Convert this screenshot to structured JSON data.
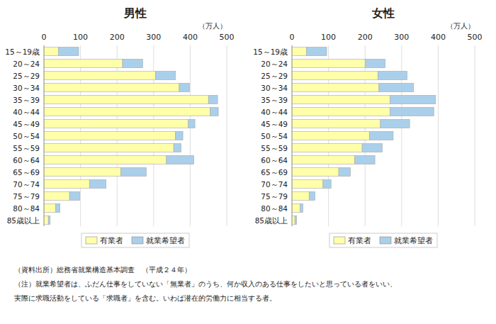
{
  "chart_data": [
    {
      "type": "bar",
      "orientation": "horizontal",
      "stacked": true,
      "title": "男性",
      "x_label": "（万人）",
      "categories": [
        "15～19歳",
        "20～24",
        "25～29",
        "30～34",
        "35～39",
        "40～44",
        "45～49",
        "50～54",
        "55～59",
        "60～64",
        "65～69",
        "70～74",
        "75～79",
        "80～84",
        "85歳以上"
      ],
      "series": [
        {
          "name": "有業者",
          "color": "#ffffaa",
          "values": [
            40,
            215,
            305,
            370,
            450,
            455,
            395,
            360,
            355,
            335,
            210,
            125,
            70,
            32,
            12
          ]
        },
        {
          "name": "就業希望者",
          "color": "#aacfea",
          "values": [
            55,
            55,
            55,
            28,
            25,
            22,
            18,
            20,
            20,
            75,
            70,
            45,
            28,
            12,
            5
          ]
        }
      ],
      "xlim": [
        0,
        500
      ],
      "xticks": [
        0,
        100,
        200,
        300,
        400,
        500
      ],
      "grid": true,
      "legend": "bottom",
      "annotations": [
        "（資料出所）総務省就業構造基本調査　（平成２４年）",
        "（注）就業希望者は、ふだん仕事をしていない「無業者」のうち、何か収入のある仕事をしたいと思っている者をいい、",
        "実際に求職活動をしている「求職者」を含む。いわば潜在的労働力に相当する者。"
      ]
    },
    {
      "type": "bar",
      "orientation": "horizontal",
      "stacked": true,
      "title": "女性",
      "x_label": "（万人）",
      "categories": [
        "15～19歳",
        "20～24",
        "25～29",
        "30～34",
        "35～39",
        "40～44",
        "45～49",
        "50～54",
        "55～59",
        "60～64",
        "65～69",
        "70～74",
        "75～79",
        "80～84",
        "85歳以上"
      ],
      "series": [
        {
          "name": "有業者",
          "color": "#ffffaa",
          "values": [
            40,
            200,
            235,
            238,
            268,
            268,
            242,
            212,
            192,
            172,
            128,
            85,
            47,
            22,
            8
          ]
        },
        {
          "name": "就業希望者",
          "color": "#aacfea",
          "values": [
            55,
            55,
            80,
            95,
            125,
            120,
            80,
            65,
            55,
            55,
            32,
            22,
            16,
            8,
            5
          ]
        }
      ],
      "xlim": [
        0,
        500
      ],
      "xticks": [
        0,
        100,
        200,
        300,
        400,
        500
      ],
      "grid": true,
      "legend": "bottom"
    }
  ]
}
